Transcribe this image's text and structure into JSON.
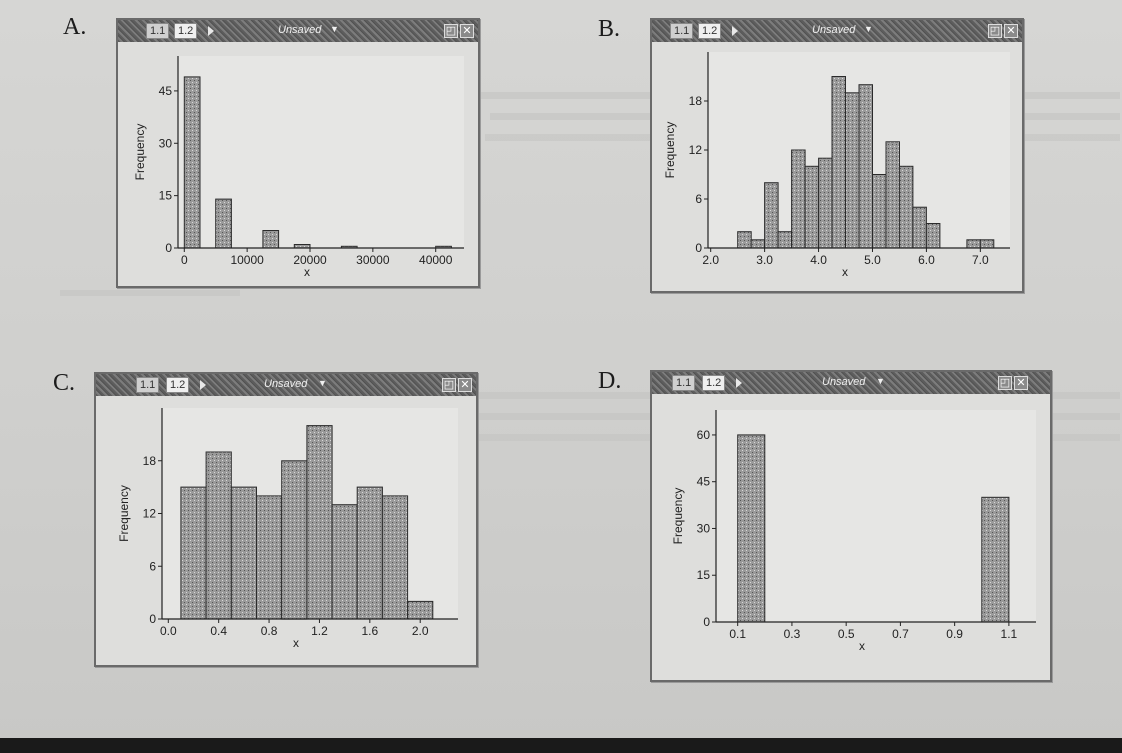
{
  "page": {
    "question_labels": [
      "A.",
      "B.",
      "C.",
      "D."
    ],
    "colors": {
      "paper": "#d2d2d0",
      "bar_fill": "#9a9a9a",
      "bar_stroke": "#2b2b2b",
      "titlebar": "#666666"
    }
  },
  "windows": [
    {
      "tab1": "1.1",
      "tab2": "1.2",
      "title": "Unsaved",
      "menu_icon": "chevron-down-icon"
    },
    {
      "tab1": "1.1",
      "tab2": "1.2",
      "title": "Unsaved",
      "menu_icon": "chevron-down-icon"
    },
    {
      "tab1": "1.1",
      "tab2": "1.2",
      "title": "Unsaved",
      "menu_icon": "chevron-down-icon"
    },
    {
      "tab1": "1.1",
      "tab2": "1.2",
      "title": "Unsaved",
      "menu_icon": "chevron-down-icon"
    }
  ],
  "chart_data": [
    {
      "type": "bar",
      "panel": "A.",
      "xlabel": "x",
      "ylabel": "Frequency",
      "bin_width": 2500,
      "bins": [
        {
          "x0": 0,
          "x1": 2500,
          "count": 49
        },
        {
          "x0": 5000,
          "x1": 7500,
          "count": 14
        },
        {
          "x0": 12500,
          "x1": 15000,
          "count": 5
        },
        {
          "x0": 17500,
          "x1": 20000,
          "count": 1
        },
        {
          "x0": 25000,
          "x1": 27500,
          "count": 0.5
        },
        {
          "x0": 40000,
          "x1": 42500,
          "count": 0.5
        }
      ],
      "xlim": [
        -1000,
        44500
      ],
      "ylim": [
        0,
        55
      ],
      "xticks": [
        0,
        10000,
        20000,
        30000,
        40000
      ],
      "xtick_labels": [
        "0",
        "10000",
        "20000",
        "30000",
        "40000"
      ],
      "yticks": [
        0,
        15,
        30,
        45
      ],
      "ytick_labels": [
        "0",
        "15",
        "30",
        "45"
      ]
    },
    {
      "type": "bar",
      "panel": "B.",
      "xlabel": "x",
      "ylabel": "Frequency",
      "bin_width": 0.25,
      "bins": [
        {
          "x0": 2.5,
          "x1": 2.75,
          "count": 2
        },
        {
          "x0": 2.75,
          "x1": 3.0,
          "count": 1
        },
        {
          "x0": 3.0,
          "x1": 3.25,
          "count": 8
        },
        {
          "x0": 3.25,
          "x1": 3.5,
          "count": 2
        },
        {
          "x0": 3.5,
          "x1": 3.75,
          "count": 12
        },
        {
          "x0": 3.75,
          "x1": 4.0,
          "count": 10
        },
        {
          "x0": 4.0,
          "x1": 4.25,
          "count": 11
        },
        {
          "x0": 4.25,
          "x1": 4.5,
          "count": 21
        },
        {
          "x0": 4.5,
          "x1": 4.75,
          "count": 19
        },
        {
          "x0": 4.75,
          "x1": 5.0,
          "count": 20
        },
        {
          "x0": 5.0,
          "x1": 5.25,
          "count": 9
        },
        {
          "x0": 5.25,
          "x1": 5.5,
          "count": 13
        },
        {
          "x0": 5.5,
          "x1": 5.75,
          "count": 10
        },
        {
          "x0": 5.75,
          "x1": 6.0,
          "count": 5
        },
        {
          "x0": 6.0,
          "x1": 6.25,
          "count": 3
        },
        {
          "x0": 6.75,
          "x1": 7.0,
          "count": 1
        },
        {
          "x0": 7.0,
          "x1": 7.25,
          "count": 1
        }
      ],
      "xlim": [
        1.95,
        7.55
      ],
      "ylim": [
        0,
        24
      ],
      "xticks": [
        2.0,
        3.0,
        4.0,
        5.0,
        6.0,
        7.0
      ],
      "xtick_labels": [
        "2.0",
        "3.0",
        "4.0",
        "5.0",
        "6.0",
        "7.0"
      ],
      "yticks": [
        0,
        6,
        12,
        18
      ],
      "ytick_labels": [
        "0",
        "6",
        "12",
        "18"
      ]
    },
    {
      "type": "bar",
      "panel": "C.",
      "xlabel": "x",
      "ylabel": "Frequency",
      "bin_width": 0.2,
      "bins": [
        {
          "x0": 0.1,
          "x1": 0.3,
          "count": 15
        },
        {
          "x0": 0.3,
          "x1": 0.5,
          "count": 19
        },
        {
          "x0": 0.5,
          "x1": 0.7,
          "count": 15
        },
        {
          "x0": 0.7,
          "x1": 0.9,
          "count": 14
        },
        {
          "x0": 0.9,
          "x1": 1.1,
          "count": 18
        },
        {
          "x0": 1.1,
          "x1": 1.3,
          "count": 22
        },
        {
          "x0": 1.3,
          "x1": 1.5,
          "count": 13
        },
        {
          "x0": 1.5,
          "x1": 1.7,
          "count": 15
        },
        {
          "x0": 1.7,
          "x1": 1.9,
          "count": 14
        },
        {
          "x0": 1.9,
          "x1": 2.1,
          "count": 2
        }
      ],
      "xlim": [
        -0.05,
        2.3
      ],
      "ylim": [
        0,
        24
      ],
      "xticks": [
        0.0,
        0.4,
        0.8,
        1.2,
        1.6,
        2.0
      ],
      "xtick_labels": [
        "0.0",
        "0.4",
        "0.8",
        "1.2",
        "1.6",
        "2.0"
      ],
      "yticks": [
        0,
        6,
        12,
        18
      ],
      "ytick_labels": [
        "0",
        "6",
        "12",
        "18"
      ]
    },
    {
      "type": "bar",
      "panel": "D.",
      "xlabel": "x",
      "ylabel": "Frequency",
      "bin_width": 0.1,
      "bins": [
        {
          "x0": 0.1,
          "x1": 0.2,
          "count": 60
        },
        {
          "x0": 1.0,
          "x1": 1.1,
          "count": 40
        }
      ],
      "xlim": [
        0.02,
        1.2
      ],
      "ylim": [
        0,
        68
      ],
      "xticks": [
        0.1,
        0.3,
        0.5,
        0.7,
        0.9,
        1.1
      ],
      "xtick_labels": [
        "0.1",
        "0.3",
        "0.5",
        "0.7",
        "0.9",
        "1.1"
      ],
      "yticks": [
        0,
        15,
        30,
        45,
        60
      ],
      "ytick_labels": [
        "0",
        "15",
        "30",
        "45",
        "60"
      ]
    }
  ]
}
